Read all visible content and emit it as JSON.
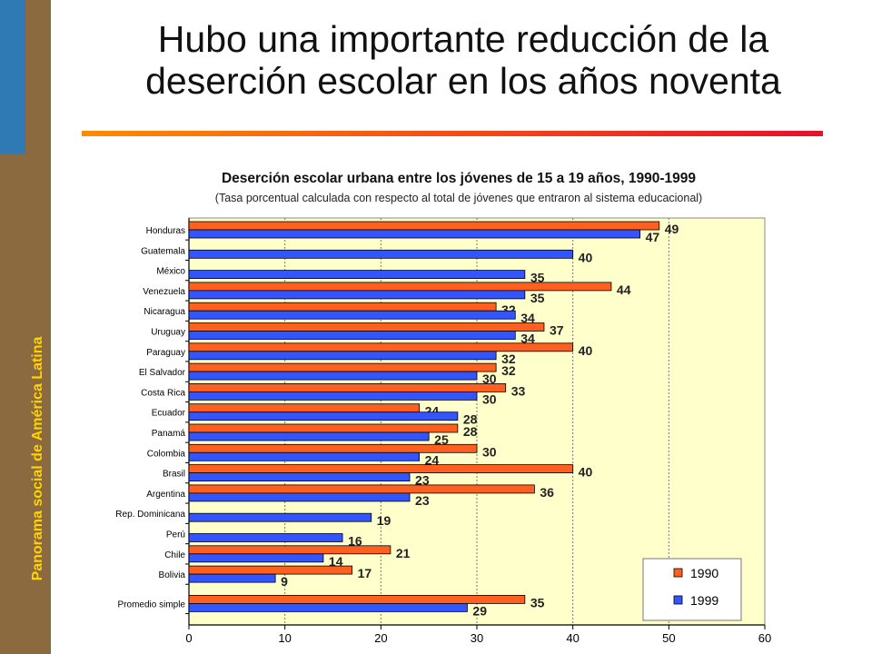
{
  "sidebar": {
    "label": "Panorama social de América Latina"
  },
  "slide": {
    "title": "Hubo una importante reducción de la deserción escolar en los años noventa"
  },
  "chart_data": {
    "type": "bar",
    "orientation": "horizontal",
    "title": "Deserción escolar urbana entre los jóvenes de 15 a 19 años, 1990-1999",
    "subtitle": "(Tasa porcentual calculada con respecto al total de jóvenes que entraron al sistema educacional)",
    "categories": [
      "Honduras",
      "Guatemala",
      "México",
      "Venezuela",
      "Nicaragua",
      "Uruguay",
      "Paraguay",
      "El Salvador",
      "Costa Rica",
      "Ecuador",
      "Panamá",
      "Colombia",
      "Brasil",
      "Argentina",
      "Rep. Dominicana",
      "Perú",
      "Chile",
      "Bolivia",
      "Promedio simple"
    ],
    "series": [
      {
        "name": "1990",
        "color": "#ff6020",
        "values": [
          49,
          null,
          null,
          44,
          32,
          37,
          40,
          32,
          33,
          24,
          28,
          30,
          40,
          36,
          null,
          null,
          21,
          17,
          35
        ]
      },
      {
        "name": "1999",
        "color": "#3355ff",
        "values": [
          47,
          40,
          35,
          35,
          34,
          34,
          32,
          30,
          30,
          28,
          25,
          24,
          23,
          23,
          19,
          16,
          14,
          9,
          29
        ]
      }
    ],
    "xlim": [
      0,
      60
    ],
    "xticks": [
      "0",
      "10",
      "20",
      "30",
      "40",
      "50",
      "60"
    ],
    "grid": true,
    "plot_background": "#ffffcc",
    "legend_position": "bottom-right"
  }
}
